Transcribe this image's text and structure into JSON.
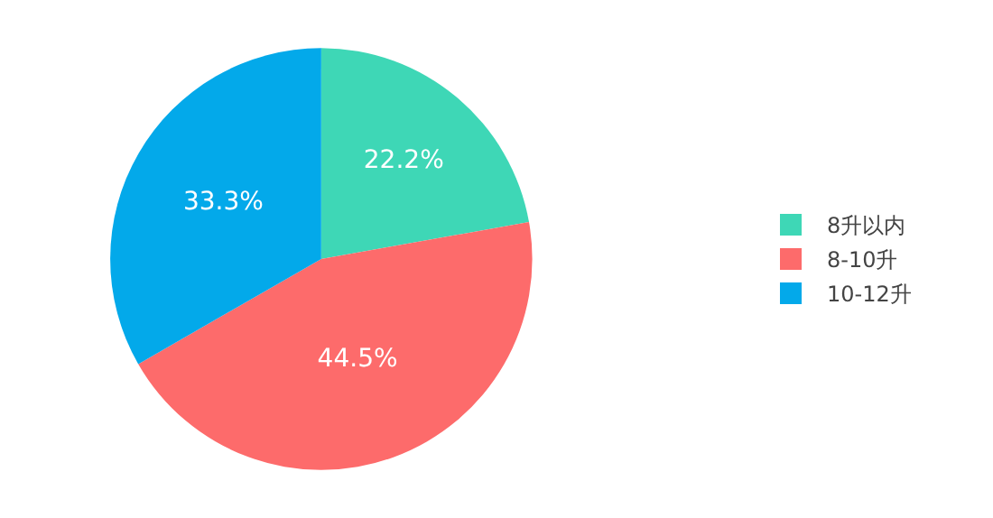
{
  "chart_data": {
    "type": "pie",
    "categories": [
      "8升以内",
      "8-10升",
      "10-12升"
    ],
    "values": [
      22.2,
      44.5,
      33.3
    ],
    "colors": [
      "#3ed7b6",
      "#fd6b6b",
      "#03a9ea"
    ],
    "value_labels": [
      "22.2%",
      "44.5%",
      "33.3%"
    ],
    "legend": "right"
  }
}
